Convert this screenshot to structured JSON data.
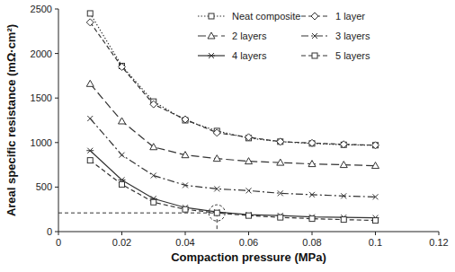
{
  "chart_data": {
    "type": "line",
    "x_label": "Compaction pressure (MPa)",
    "y_label": "Areal specific resistance (mΩ·cm²)",
    "x": [
      0.01,
      0.02,
      0.03,
      0.04,
      0.05,
      0.06,
      0.07,
      0.08,
      0.09,
      0.1
    ],
    "xlim": [
      0,
      0.12
    ],
    "xticks": [
      0,
      0.02,
      0.04,
      0.06,
      0.08,
      0.1,
      0.12
    ],
    "ylim": [
      0,
      2500
    ],
    "yticks": [
      0,
      500,
      1000,
      1500,
      2000,
      2500
    ],
    "grid": false,
    "legend": "top",
    "reference_point": {
      "x": 0.05,
      "y": 210
    },
    "series": [
      {
        "name": "Neat composite",
        "color": "#333333",
        "marker": "square",
        "line_style": "dotted",
        "values": [
          2450,
          1860,
          1460,
          1250,
          1130,
          1050,
          1010,
          990,
          975,
          970
        ]
      },
      {
        "name": "1 layer",
        "color": "#333333",
        "marker": "diamond",
        "line_style": "dashed",
        "values": [
          2350,
          1850,
          1430,
          1260,
          1110,
          1060,
          1010,
          995,
          980,
          970
        ]
      },
      {
        "name": "2 layers",
        "color": "#333333",
        "marker": "triangle",
        "line_style": "longdash",
        "values": [
          1660,
          1240,
          950,
          860,
          820,
          790,
          775,
          760,
          750,
          740
        ]
      },
      {
        "name": "3 layers",
        "color": "#333333",
        "marker": "x",
        "line_style": "dashdot",
        "values": [
          1270,
          860,
          630,
          520,
          480,
          460,
          430,
          415,
          400,
          390
        ]
      },
      {
        "name": "4 layers",
        "color": "#333333",
        "marker": "star",
        "line_style": "solid",
        "values": [
          910,
          580,
          370,
          270,
          220,
          190,
          180,
          165,
          160,
          155
        ]
      },
      {
        "name": "5 layers",
        "color": "#333333",
        "marker": "square",
        "line_style": "dashed",
        "values": [
          800,
          530,
          330,
          250,
          210,
          180,
          160,
          145,
          135,
          125
        ]
      }
    ]
  }
}
